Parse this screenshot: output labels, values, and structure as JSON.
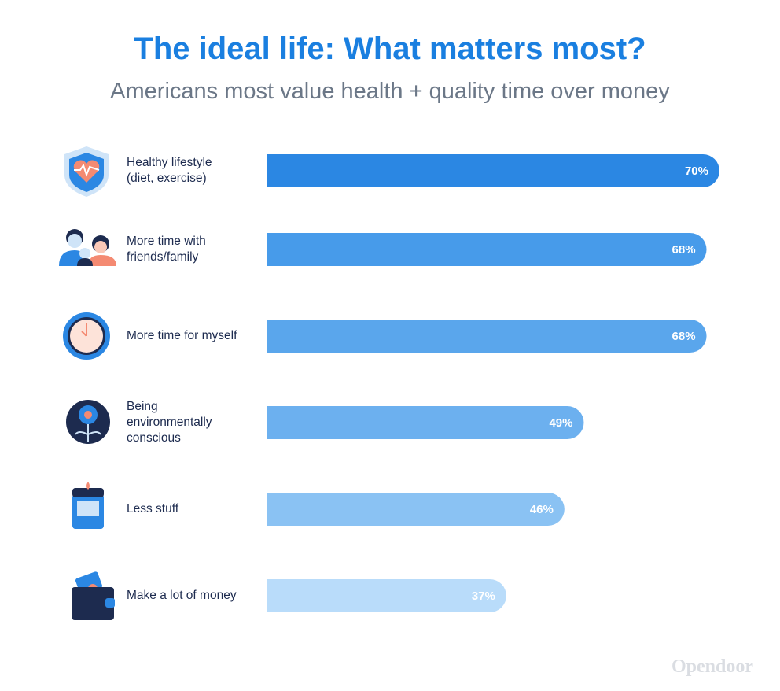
{
  "chart_data": {
    "type": "bar",
    "orientation": "horizontal",
    "title": "The ideal life: What matters most?",
    "subtitle": "Americans most value health + quality time over money",
    "brand": "Opendoor",
    "categories": [
      "Healthy lifestyle\n(diet, exercise)",
      "More time with\nfriends/family",
      "More time for myself",
      "Being\nenvironmentally\nconscious",
      "Less stuff",
      "Make a lot of money"
    ],
    "values": [
      70,
      68,
      68,
      49,
      46,
      37
    ],
    "value_labels": [
      "70%",
      "68%",
      "68%",
      "49%",
      "46%",
      "37%"
    ],
    "colors": [
      "#2b87e3",
      "#479bea",
      "#5aa6ec",
      "#6cb0ef",
      "#8ac2f3",
      "#b9dcfa"
    ]
  }
}
